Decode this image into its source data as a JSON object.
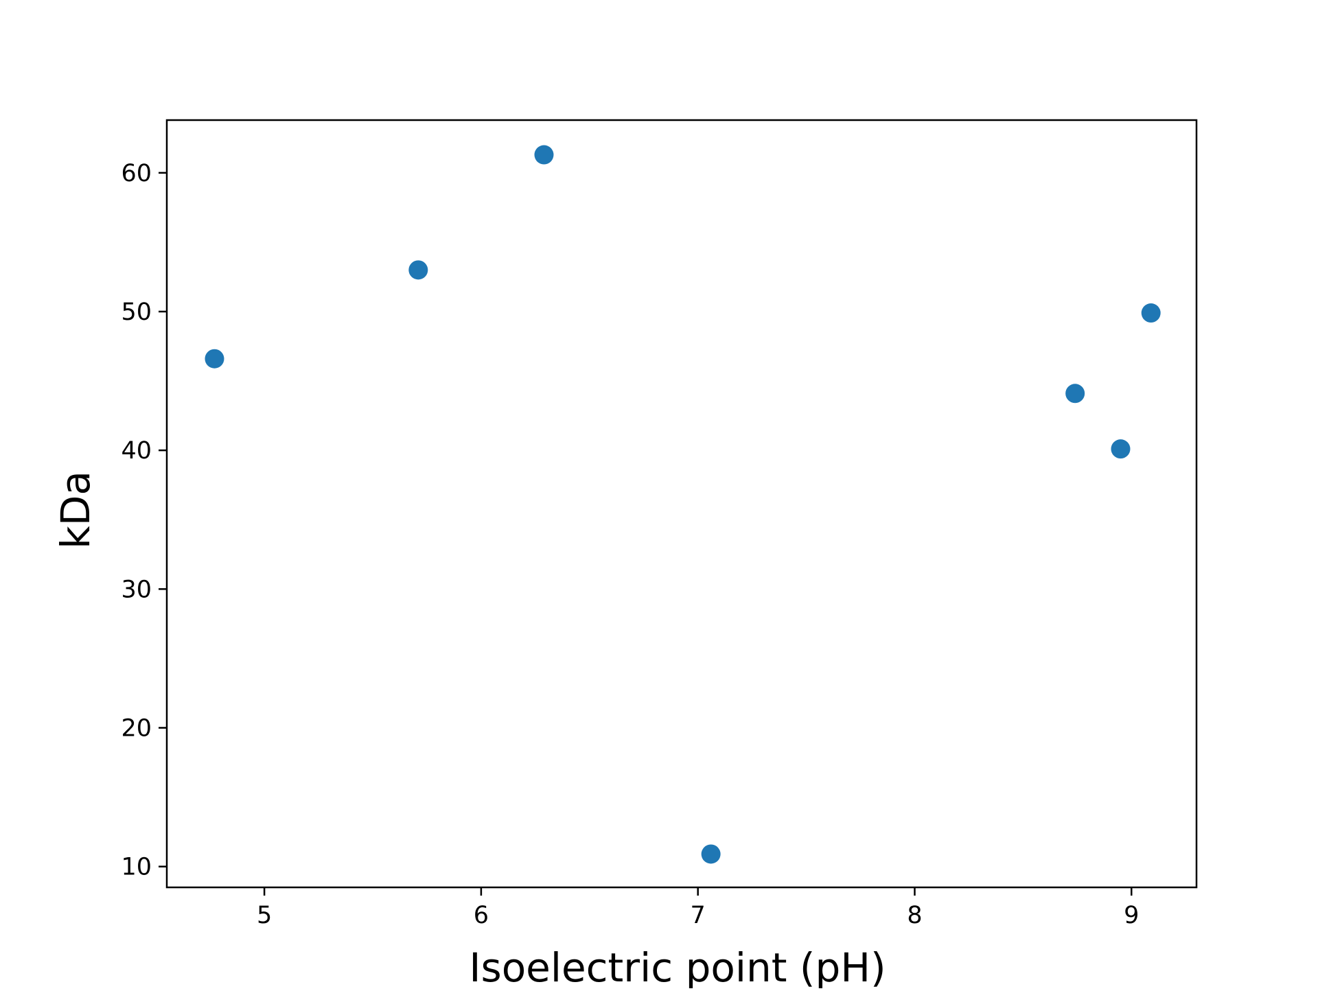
{
  "chart_data": {
    "type": "scatter",
    "title": "",
    "xlabel": "Isoelectric point (pH)",
    "ylabel": "kDa",
    "xlim": [
      4.55,
      9.3
    ],
    "ylim": [
      8.5,
      63.8
    ],
    "x_ticks": [
      5,
      6,
      7,
      8,
      9
    ],
    "y_ticks": [
      10,
      20,
      30,
      40,
      50,
      60
    ],
    "grid": false,
    "marker_color": "#1f77b4",
    "points": [
      {
        "x": 4.77,
        "y": 46.6
      },
      {
        "x": 5.71,
        "y": 53.0
      },
      {
        "x": 6.29,
        "y": 61.3
      },
      {
        "x": 7.06,
        "y": 10.9
      },
      {
        "x": 8.74,
        "y": 44.1
      },
      {
        "x": 8.95,
        "y": 40.1
      },
      {
        "x": 9.09,
        "y": 49.9
      }
    ]
  }
}
